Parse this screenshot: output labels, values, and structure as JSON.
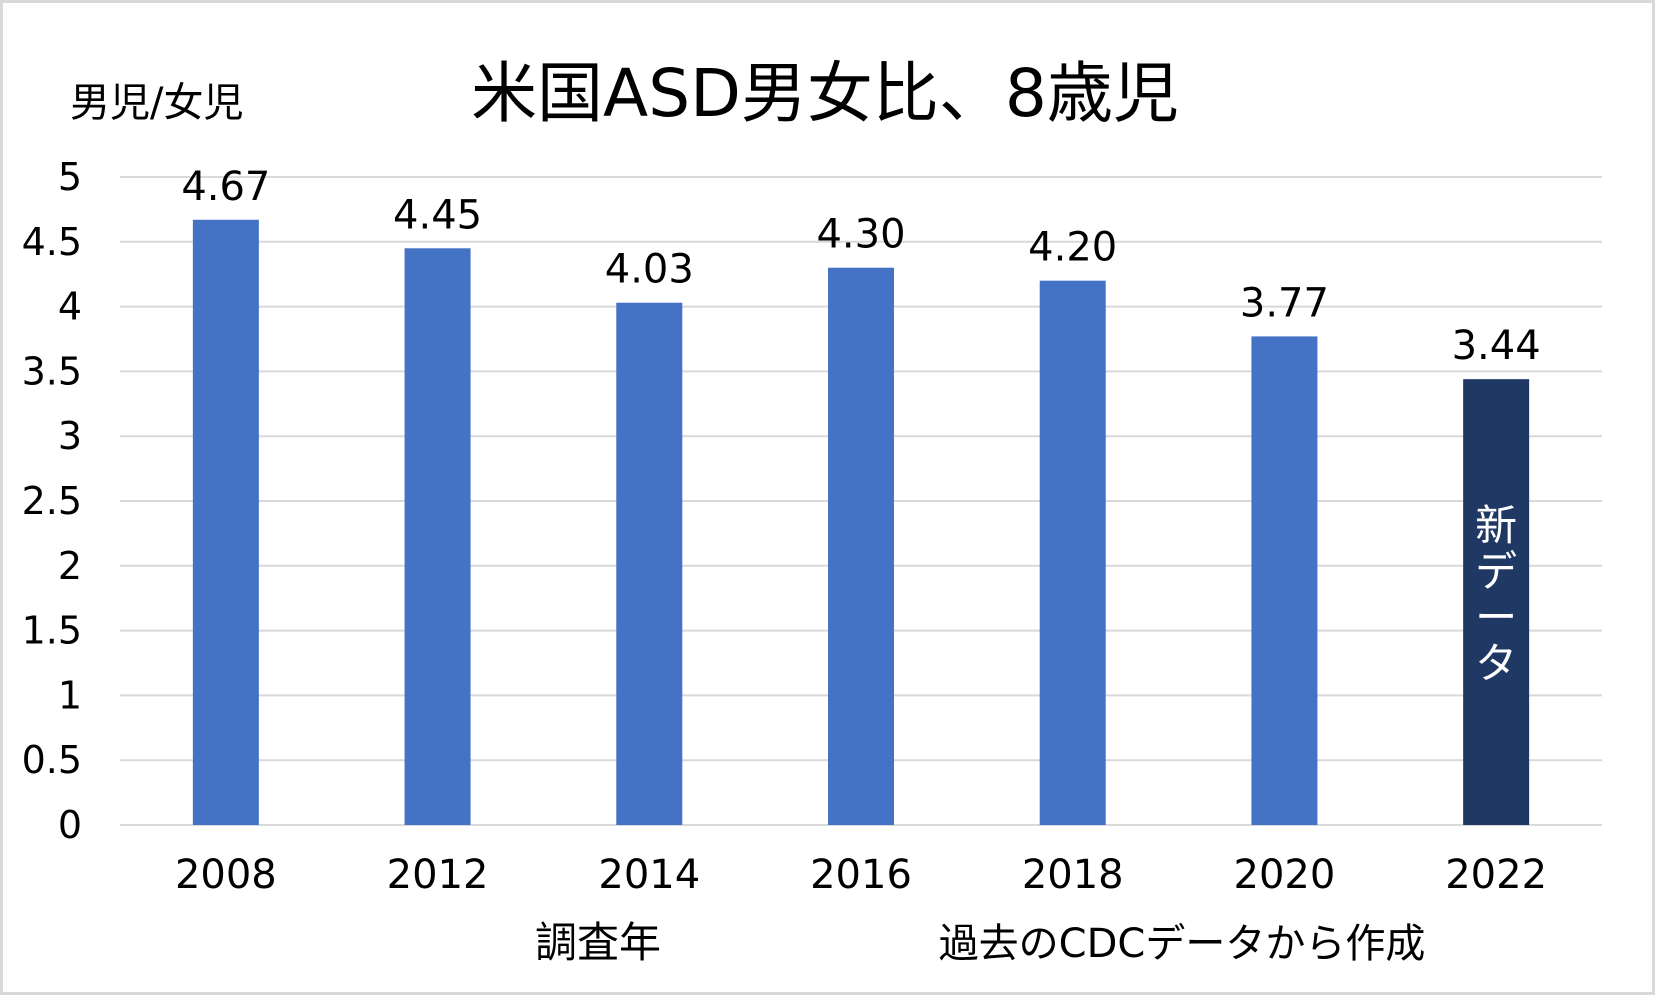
{
  "chart_data": {
    "type": "bar",
    "title": "米国ASD男女比、8歳児",
    "ylabel": "男児/女児",
    "xlabel": "調査年",
    "source_note": "過去のCDCデータから作成",
    "categories": [
      "2008",
      "2012",
      "2014",
      "2016",
      "2018",
      "2020",
      "2022"
    ],
    "values": [
      4.67,
      4.45,
      4.03,
      4.3,
      4.2,
      3.77,
      3.44
    ],
    "data_labels": [
      "4.67",
      "4.45",
      "4.03",
      "4.30",
      "4.20",
      "3.77",
      "3.44"
    ],
    "ylim": [
      0,
      5
    ],
    "yticks": [
      "0",
      "0.5",
      "1",
      "1.5",
      "2",
      "2.5",
      "3",
      "3.5",
      "4",
      "4.5",
      "5"
    ],
    "grid": true,
    "legend": "none",
    "highlight": {
      "category": "2022",
      "label": "新データ"
    },
    "colors": {
      "bar": "#4472c4",
      "highlight_bar": "#203864",
      "grid": "#d9d9d9",
      "highlight_text": "#ffffff"
    }
  }
}
